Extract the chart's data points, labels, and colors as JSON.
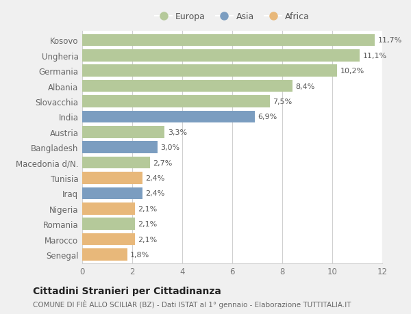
{
  "countries": [
    "Kosovo",
    "Ungheria",
    "Germania",
    "Albania",
    "Slovacchia",
    "India",
    "Austria",
    "Bangladesh",
    "Macedonia d/N.",
    "Tunisia",
    "Iraq",
    "Nigeria",
    "Romania",
    "Marocco",
    "Senegal"
  ],
  "values": [
    11.7,
    11.1,
    10.2,
    8.4,
    7.5,
    6.9,
    3.3,
    3.0,
    2.7,
    2.4,
    2.4,
    2.1,
    2.1,
    2.1,
    1.8
  ],
  "labels": [
    "11,7%",
    "11,1%",
    "10,2%",
    "8,4%",
    "7,5%",
    "6,9%",
    "3,3%",
    "3,0%",
    "2,7%",
    "2,4%",
    "2,4%",
    "2,1%",
    "2,1%",
    "2,1%",
    "1,8%"
  ],
  "continents": [
    "Europa",
    "Europa",
    "Europa",
    "Europa",
    "Europa",
    "Asia",
    "Europa",
    "Asia",
    "Europa",
    "Africa",
    "Asia",
    "Africa",
    "Europa",
    "Africa",
    "Africa"
  ],
  "colors": {
    "Europa": "#b5c99a",
    "Asia": "#7b9dc0",
    "Africa": "#e8b87a"
  },
  "legend_labels": [
    "Europa",
    "Asia",
    "Africa"
  ],
  "title": "Cittadini Stranieri per Cittadinanza",
  "subtitle": "COMUNE DI FIÈ ALLO SCILIAR (BZ) - Dati ISTAT al 1° gennaio - Elaborazione TUTTITALIA.IT",
  "xlim": [
    0,
    12
  ],
  "xticks": [
    0,
    2,
    4,
    6,
    8,
    10,
    12
  ],
  "fig_background": "#f0f0f0",
  "plot_background": "#ffffff",
  "grid_color": "#d0d0d0",
  "title_fontsize": 10,
  "subtitle_fontsize": 7.5,
  "label_fontsize": 8,
  "tick_fontsize": 8.5,
  "legend_fontsize": 9,
  "bar_height": 0.78
}
